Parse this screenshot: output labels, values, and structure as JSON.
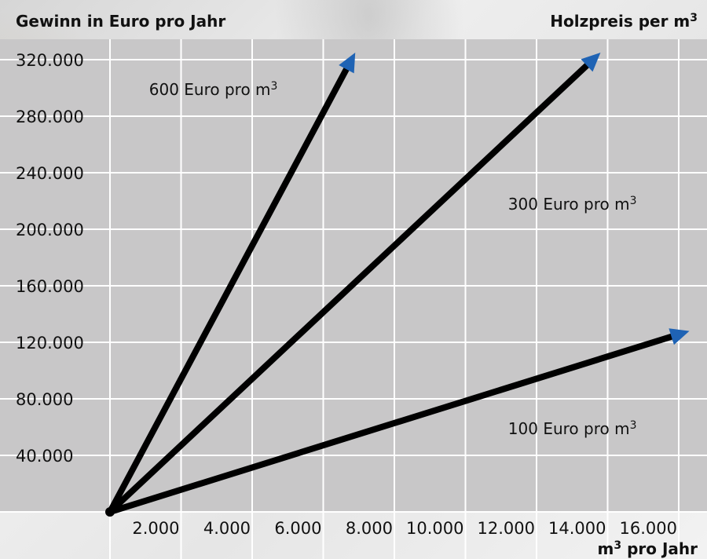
{
  "chart_data": {
    "type": "line",
    "ylabel": "Gewinn in Euro pro Jahr",
    "legend_title": "Holzpreis per m",
    "legend_title_sup": "3",
    "xlabel": "pro Jahr",
    "xlabel_prefix": "m",
    "xlabel_sup": "3",
    "xlim": [
      0,
      16000
    ],
    "ylim": [
      0,
      320000
    ],
    "x_ticks": [
      2000,
      4000,
      6000,
      8000,
      10000,
      12000,
      14000,
      16000
    ],
    "x_tick_labels": [
      "2.000",
      "4.000",
      "6.000",
      "8.000",
      "10.000",
      "12.000",
      "14.000",
      "16.000"
    ],
    "y_ticks": [
      40000,
      80000,
      120000,
      160000,
      200000,
      240000,
      280000,
      320000
    ],
    "y_tick_labels": [
      "40.000",
      "80.000",
      "120.000",
      "160.000",
      "200.000",
      "240.000",
      "280.000",
      "320.000"
    ],
    "grid": true,
    "series": [
      {
        "name": "600 Euro pro m",
        "sup": "3",
        "x": [
          0,
          6900
        ],
        "y": [
          0,
          325000
        ],
        "label_at": [
          1100,
          295000
        ]
      },
      {
        "name": "300 Euro pro m",
        "sup": "3",
        "x": [
          0,
          13800
        ],
        "y": [
          0,
          325000
        ],
        "label_at": [
          11200,
          214000
        ]
      },
      {
        "name": "100 Euro pro m",
        "sup": "3",
        "x": [
          0,
          16300
        ],
        "y": [
          0,
          128000
        ],
        "label_at": [
          11200,
          55000
        ]
      }
    ],
    "colors": {
      "plot_bg": "#c8c7c8",
      "grid": "#ffffff",
      "line": "#000000",
      "arrowhead": "#1f63b4"
    }
  }
}
